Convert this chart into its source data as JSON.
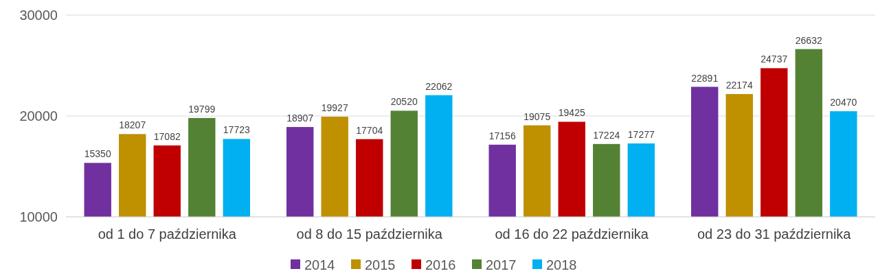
{
  "chart_data": {
    "type": "bar",
    "categories": [
      "od 1 do 7 października",
      "od 8 do 15 października",
      "od 16 do 22 października",
      "od 23 do 31 października"
    ],
    "series": [
      {
        "name": "2014",
        "color": "#7030a0",
        "values": [
          15350,
          18907,
          17156,
          22891
        ]
      },
      {
        "name": "2015",
        "color": "#bf9000",
        "values": [
          18207,
          19927,
          19075,
          22174
        ]
      },
      {
        "name": "2016",
        "color": "#c00000",
        "values": [
          17082,
          17704,
          19425,
          24737
        ]
      },
      {
        "name": "2017",
        "color": "#548235",
        "values": [
          19799,
          20520,
          17224,
          26632
        ]
      },
      {
        "name": "2018",
        "color": "#00b0f0",
        "values": [
          17723,
          22062,
          17277,
          20470
        ]
      }
    ],
    "ylim": [
      10000,
      30000
    ],
    "yticks": [
      10000,
      20000,
      30000
    ],
    "grid": "y",
    "legend": "bottom",
    "data_labels": true
  }
}
